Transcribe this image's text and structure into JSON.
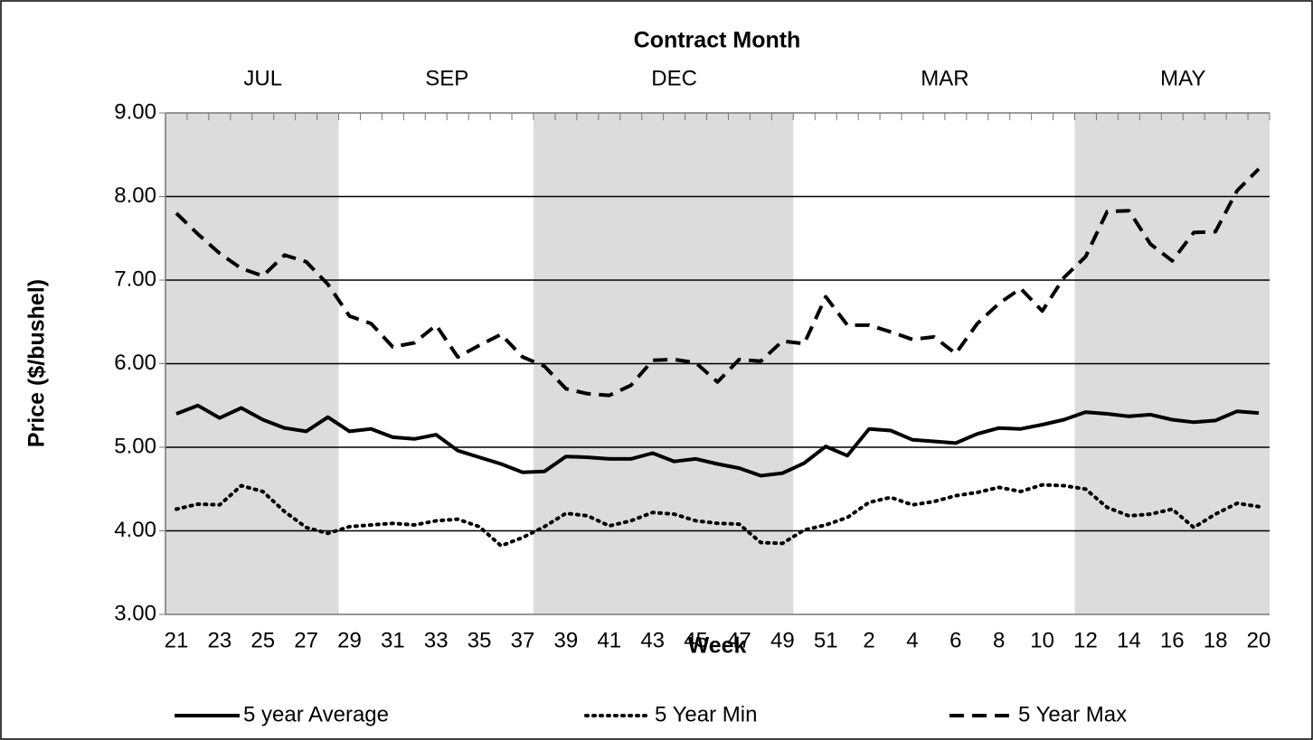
{
  "chart_data": {
    "type": "line",
    "top_axis_title": "Contract Month",
    "contract_months": [
      {
        "label": "JUL",
        "shaded": true
      },
      {
        "label": "SEP",
        "shaded": false
      },
      {
        "label": "DEC",
        "shaded": true
      },
      {
        "label": "MAR",
        "shaded": false
      },
      {
        "label": "MAY",
        "shaded": true
      }
    ],
    "x_label": "Week",
    "y_label": "Price ($/bushel)",
    "categories": [
      "21",
      null,
      "23",
      null,
      "25",
      null,
      "27",
      null,
      "29",
      null,
      "31",
      null,
      "33",
      null,
      "35",
      null,
      "37",
      null,
      "39",
      null,
      "41",
      null,
      "43",
      null,
      "45",
      null,
      "47",
      null,
      "49",
      null,
      "51",
      null,
      "2",
      null,
      "4",
      null,
      "6",
      null,
      "8",
      null,
      "10",
      null,
      "12",
      null,
      "14",
      null,
      "16",
      null,
      "18",
      null,
      "20"
    ],
    "series": [
      {
        "name": "5 year Average",
        "color": "#000000",
        "dash": "solid",
        "values": [
          5.4,
          5.5,
          5.35,
          5.47,
          5.33,
          5.23,
          5.19,
          5.36,
          5.19,
          5.22,
          5.12,
          5.1,
          5.15,
          4.96,
          4.88,
          4.8,
          4.7,
          4.71,
          4.89,
          4.88,
          4.86,
          4.86,
          4.93,
          4.83,
          4.86,
          4.8,
          4.75,
          4.66,
          4.69,
          4.81,
          5.01,
          4.9,
          5.22,
          5.2,
          5.09,
          5.07,
          5.05,
          5.16,
          5.23,
          5.22,
          5.27,
          5.33,
          5.42,
          5.4,
          5.37,
          5.39,
          5.33,
          5.3,
          5.32,
          5.43,
          5.41
        ]
      },
      {
        "name": "5 Year Min",
        "color": "#000000",
        "dash": "dotted",
        "values": [
          4.26,
          4.32,
          4.31,
          4.54,
          4.47,
          4.23,
          4.04,
          3.97,
          4.05,
          4.07,
          4.09,
          4.07,
          4.12,
          4.14,
          4.05,
          3.82,
          3.92,
          4.05,
          4.21,
          4.18,
          4.06,
          4.12,
          4.22,
          4.2,
          4.12,
          4.09,
          4.08,
          3.86,
          3.85,
          4.01,
          4.07,
          4.16,
          4.34,
          4.4,
          4.31,
          4.35,
          4.42,
          4.46,
          4.52,
          4.47,
          4.55,
          4.54,
          4.5,
          4.28,
          4.18,
          4.2,
          4.26,
          4.04,
          4.2,
          4.33,
          4.29
        ]
      },
      {
        "name": "5 Year Max",
        "color": "#000000",
        "dash": "dashed",
        "values": [
          7.8,
          7.55,
          7.32,
          7.14,
          7.05,
          7.3,
          7.22,
          6.95,
          6.57,
          6.48,
          6.2,
          6.25,
          6.46,
          6.08,
          6.22,
          6.35,
          6.08,
          5.97,
          5.7,
          5.64,
          5.62,
          5.74,
          6.04,
          6.05,
          6.01,
          5.78,
          6.05,
          6.03,
          6.27,
          6.24,
          6.8,
          6.46,
          6.46,
          6.38,
          6.29,
          6.32,
          6.12,
          6.48,
          6.72,
          6.9,
          6.63,
          7.03,
          7.28,
          7.82,
          7.83,
          7.43,
          7.23,
          7.57,
          7.58,
          8.07,
          8.33
        ]
      }
    ],
    "ylim": [
      3,
      9
    ],
    "yticks": [
      {
        "value": 3,
        "label": "3.00"
      },
      {
        "value": 4,
        "label": "4.00"
      },
      {
        "value": 5,
        "label": "5.00"
      },
      {
        "value": 6,
        "label": "6.00"
      },
      {
        "value": 7,
        "label": "7.00"
      },
      {
        "value": 8,
        "label": "8.00"
      },
      {
        "value": 9,
        "label": "9.00"
      }
    ],
    "grid": true,
    "legend": "bottom"
  }
}
